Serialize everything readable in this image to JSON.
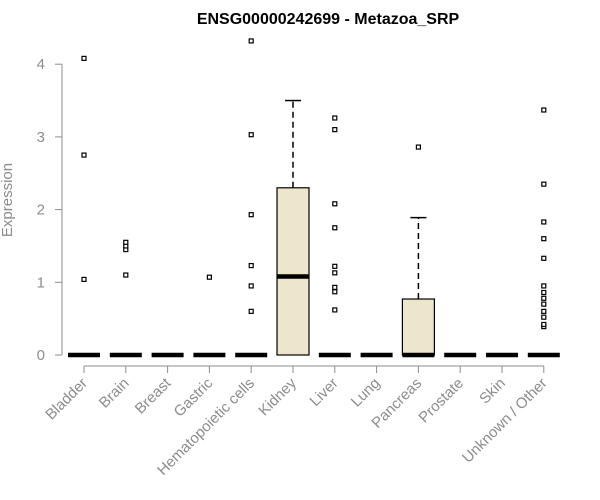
{
  "chart_data": {
    "type": "box",
    "title": "ENSG00000242699 - Metazoa_SRP",
    "xlabel": "",
    "ylabel": "Expression",
    "ylim": [
      0,
      4.4
    ],
    "yticks": [
      0,
      1,
      2,
      3,
      4
    ],
    "grid": false,
    "legend": "none",
    "colors": {
      "box_fill": "#ede6cc",
      "stroke": "#000000",
      "axis": "#8c8c8c"
    },
    "categories": [
      "Bladder",
      "Brain",
      "Breast",
      "Gastric",
      "Hematopoietic cells",
      "Kidney",
      "Liver",
      "Lung",
      "Pancreas",
      "Prostate",
      "Skin",
      "Unknown / Other"
    ],
    "boxes": [
      {
        "category": "Bladder",
        "q1": 0,
        "median": 0,
        "q3": 0,
        "whisker_low": 0,
        "whisker_high": 0,
        "outliers": [
          1.04,
          2.75,
          4.08
        ]
      },
      {
        "category": "Brain",
        "q1": 0,
        "median": 0,
        "q3": 0,
        "whisker_low": 0,
        "whisker_high": 0,
        "outliers": [
          1.1,
          1.45,
          1.5,
          1.55
        ]
      },
      {
        "category": "Breast",
        "q1": 0,
        "median": 0,
        "q3": 0,
        "whisker_low": 0,
        "whisker_high": 0,
        "outliers": []
      },
      {
        "category": "Gastric",
        "q1": 0,
        "median": 0,
        "q3": 0,
        "whisker_low": 0,
        "whisker_high": 0,
        "outliers": [
          1.07
        ]
      },
      {
        "category": "Hematopoietic cells",
        "q1": 0,
        "median": 0,
        "q3": 0,
        "whisker_low": 0,
        "whisker_high": 0,
        "outliers": [
          0.6,
          0.95,
          1.23,
          1.93,
          3.03,
          4.32
        ]
      },
      {
        "category": "Kidney",
        "q1": 0,
        "median": 1.08,
        "q3": 2.3,
        "whisker_low": 0,
        "whisker_high": 3.5,
        "outliers": []
      },
      {
        "category": "Liver",
        "q1": 0,
        "median": 0,
        "q3": 0,
        "whisker_low": 0,
        "whisker_high": 0,
        "outliers": [
          0.62,
          0.87,
          0.93,
          1.13,
          1.22,
          1.75,
          2.08,
          3.1,
          3.26
        ]
      },
      {
        "category": "Lung",
        "q1": 0,
        "median": 0,
        "q3": 0,
        "whisker_low": 0,
        "whisker_high": 0,
        "outliers": []
      },
      {
        "category": "Pancreas",
        "q1": 0,
        "median": 0,
        "q3": 0.77,
        "whisker_low": 0,
        "whisker_high": 1.89,
        "outliers": [
          2.86
        ]
      },
      {
        "category": "Prostate",
        "q1": 0,
        "median": 0,
        "q3": 0,
        "whisker_low": 0,
        "whisker_high": 0,
        "outliers": []
      },
      {
        "category": "Skin",
        "q1": 0,
        "median": 0,
        "q3": 0,
        "whisker_low": 0,
        "whisker_high": 0,
        "outliers": []
      },
      {
        "category": "Unknown / Other",
        "q1": 0,
        "median": 0,
        "q3": 0,
        "whisker_low": 0,
        "whisker_high": 0,
        "outliers": [
          0.39,
          0.42,
          0.52,
          0.6,
          0.7,
          0.78,
          0.86,
          0.95,
          1.33,
          1.6,
          1.83,
          2.35,
          3.37
        ]
      }
    ]
  }
}
